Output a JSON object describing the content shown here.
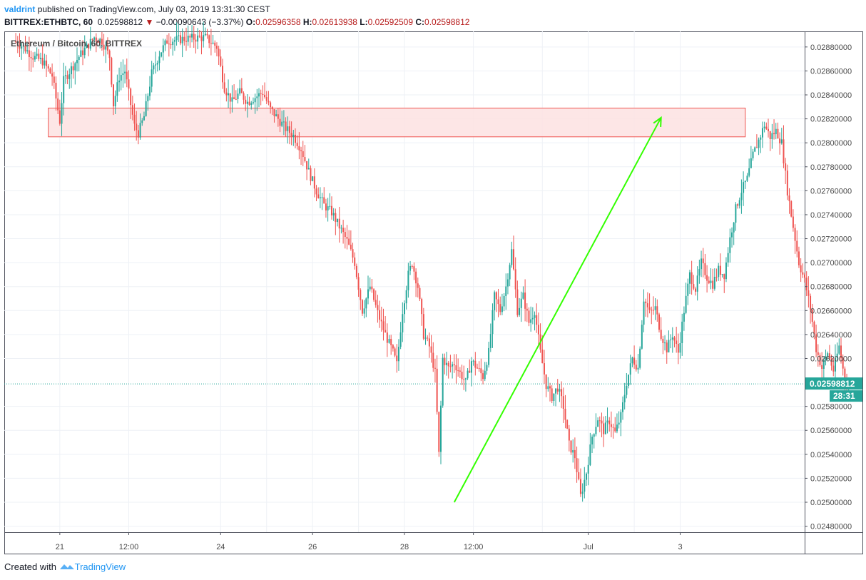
{
  "header": {
    "user": "valdrint",
    "published": "published on TradingView.com, July 03, 2019 13:31:30 CEST",
    "symbol": "BITTREX:ETHBTC, 60",
    "last": "0.02598812",
    "change_arrow": "▼",
    "change": "−0.00090643 (−3.37%)",
    "o_label": "O:",
    "o_value": "0.02596358",
    "h_label": "H:",
    "h_value": "0.02613938",
    "l_label": "L:",
    "l_value": "0.02592509",
    "c_label": "C:",
    "c_value": "0.02598812"
  },
  "watermark": "Ethereum / Bitcoin, 60, BITTREX",
  "price_label": "0.02598812",
  "countdown_label": "28:31",
  "footer": {
    "created_with": "Created with",
    "brand": "TradingView"
  },
  "colors": {
    "up": "#26a69a",
    "down": "#ef5350",
    "resistance_fill": "#fde2e2",
    "resistance_stroke": "#ef5350",
    "trend_arrow": "#33ff00",
    "price_line": "#26a69a",
    "grid": "#eef1f6"
  },
  "chart_data": {
    "type": "candlestick",
    "timeframe": "60",
    "symbol": "ETHBTC",
    "exchange": "BITTREX",
    "y_ticks": [
      "0.02880000",
      "0.02860000",
      "0.02840000",
      "0.02820000",
      "0.02800000",
      "0.02780000",
      "0.02760000",
      "0.02740000",
      "0.02720000",
      "0.02700000",
      "0.02680000",
      "0.02660000",
      "0.02640000",
      "0.02620000",
      "0.02580000",
      "0.02560000",
      "0.02540000",
      "0.02520000",
      "0.02500000",
      "0.02480000"
    ],
    "y_tick_values": [
      0.0288,
      0.0286,
      0.0284,
      0.0282,
      0.028,
      0.0278,
      0.0276,
      0.0274,
      0.0272,
      0.027,
      0.0268,
      0.0266,
      0.0264,
      0.0262,
      0.0258,
      0.0256,
      0.0254,
      0.0252,
      0.025,
      0.0248
    ],
    "ylim": [
      0.02475,
      0.02893
    ],
    "x_labels": [
      "21",
      "12:00",
      "24",
      "26",
      "28",
      "12:00",
      "Jul",
      "3"
    ],
    "x_label_hours": [
      24,
      60,
      108,
      156,
      204,
      240,
      300,
      348
    ],
    "x_hours_range": [
      -5,
      413
    ],
    "last_price": 0.02598812,
    "resistance_zone": {
      "from_hour": 18,
      "to_hour": 382,
      "low": 0.02805,
      "high": 0.02829
    },
    "trend_arrow": {
      "from": [
        230,
        0.025
      ],
      "to": [
        338,
        0.02821
      ]
    },
    "price_path": [
      [
        0,
        0.02885
      ],
      [
        5,
        0.0288
      ],
      [
        10,
        0.02872
      ],
      [
        15,
        0.02868
      ],
      [
        20,
        0.02856
      ],
      [
        24,
        0.02818
      ],
      [
        26,
        0.02852
      ],
      [
        30,
        0.02862
      ],
      [
        34,
        0.02872
      ],
      [
        38,
        0.0288
      ],
      [
        42,
        0.02888
      ],
      [
        46,
        0.02885
      ],
      [
        50,
        0.02872
      ],
      [
        52,
        0.02832
      ],
      [
        55,
        0.02855
      ],
      [
        58,
        0.0286
      ],
      [
        61,
        0.02832
      ],
      [
        63,
        0.02814
      ],
      [
        65,
        0.02808
      ],
      [
        68,
        0.02822
      ],
      [
        72,
        0.02858
      ],
      [
        76,
        0.02874
      ],
      [
        80,
        0.02885
      ],
      [
        90,
        0.02887
      ],
      [
        100,
        0.02888
      ],
      [
        106,
        0.0288
      ],
      [
        110,
        0.02846
      ],
      [
        114,
        0.02834
      ],
      [
        118,
        0.02842
      ],
      [
        122,
        0.02834
      ],
      [
        126,
        0.02838
      ],
      [
        130,
        0.02842
      ],
      [
        134,
        0.02828
      ],
      [
        138,
        0.0282
      ],
      [
        142,
        0.02812
      ],
      [
        146,
        0.02806
      ],
      [
        150,
        0.02795
      ],
      [
        154,
        0.02776
      ],
      [
        158,
        0.0276
      ],
      [
        162,
        0.02748
      ],
      [
        166,
        0.02742
      ],
      [
        170,
        0.0273
      ],
      [
        174,
        0.02718
      ],
      [
        178,
        0.027
      ],
      [
        182,
        0.0266
      ],
      [
        186,
        0.0268
      ],
      [
        190,
        0.02658
      ],
      [
        194,
        0.0264
      ],
      [
        198,
        0.02625
      ],
      [
        200,
        0.02615
      ],
      [
        203,
        0.0266
      ],
      [
        206,
        0.0269
      ],
      [
        208,
        0.027
      ],
      [
        211,
        0.0268
      ],
      [
        214,
        0.0264
      ],
      [
        217,
        0.0263
      ],
      [
        220,
        0.02608
      ],
      [
        222,
        0.0254
      ],
      [
        224,
        0.0262
      ],
      [
        227,
        0.02612
      ],
      [
        230,
        0.02616
      ],
      [
        233,
        0.02608
      ],
      [
        236,
        0.026
      ],
      [
        239,
        0.02618
      ],
      [
        242,
        0.02612
      ],
      [
        245,
        0.02605
      ],
      [
        248,
        0.02625
      ],
      [
        251,
        0.02672
      ],
      [
        254,
        0.0266
      ],
      [
        257,
        0.0268
      ],
      [
        260,
        0.0271
      ],
      [
        263,
        0.0266
      ],
      [
        266,
        0.02672
      ],
      [
        269,
        0.0265
      ],
      [
        272,
        0.0266
      ],
      [
        275,
        0.02625
      ],
      [
        278,
        0.02598
      ],
      [
        281,
        0.02588
      ],
      [
        284,
        0.02596
      ],
      [
        287,
        0.0258
      ],
      [
        290,
        0.02548
      ],
      [
        293,
        0.02538
      ],
      [
        296,
        0.02505
      ],
      [
        299,
        0.02525
      ],
      [
        302,
        0.02555
      ],
      [
        305,
        0.0257
      ],
      [
        308,
        0.0256
      ],
      [
        311,
        0.02568
      ],
      [
        314,
        0.02558
      ],
      [
        317,
        0.02572
      ],
      [
        320,
        0.026
      ],
      [
        323,
        0.0262
      ],
      [
        326,
        0.02612
      ],
      [
        329,
        0.0267
      ],
      [
        332,
        0.02658
      ],
      [
        335,
        0.02662
      ],
      [
        338,
        0.0264
      ],
      [
        341,
        0.02628
      ],
      [
        344,
        0.0264
      ],
      [
        347,
        0.02625
      ],
      [
        350,
        0.0266
      ],
      [
        353,
        0.0269
      ],
      [
        356,
        0.02678
      ],
      [
        359,
        0.027
      ],
      [
        362,
        0.02688
      ],
      [
        365,
        0.02682
      ],
      [
        368,
        0.02694
      ],
      [
        371,
        0.0269
      ],
      [
        374,
        0.0272
      ],
      [
        377,
        0.02745
      ],
      [
        380,
        0.0276
      ],
      [
        383,
        0.0277
      ],
      [
        386,
        0.0279
      ],
      [
        389,
        0.02802
      ],
      [
        392,
        0.02815
      ],
      [
        395,
        0.02805
      ],
      [
        398,
        0.0281
      ],
      [
        401,
        0.028
      ],
      [
        404,
        0.0276
      ],
      [
        407,
        0.0273
      ],
      [
        410,
        0.027
      ],
      [
        413,
        0.02685
      ],
      [
        416,
        0.02662
      ],
      [
        419,
        0.02628
      ],
      [
        422,
        0.02612
      ],
      [
        425,
        0.02625
      ],
      [
        428,
        0.0261
      ],
      [
        431,
        0.0263
      ],
      [
        434,
        0.02602
      ],
      [
        436,
        0.02599
      ]
    ]
  }
}
